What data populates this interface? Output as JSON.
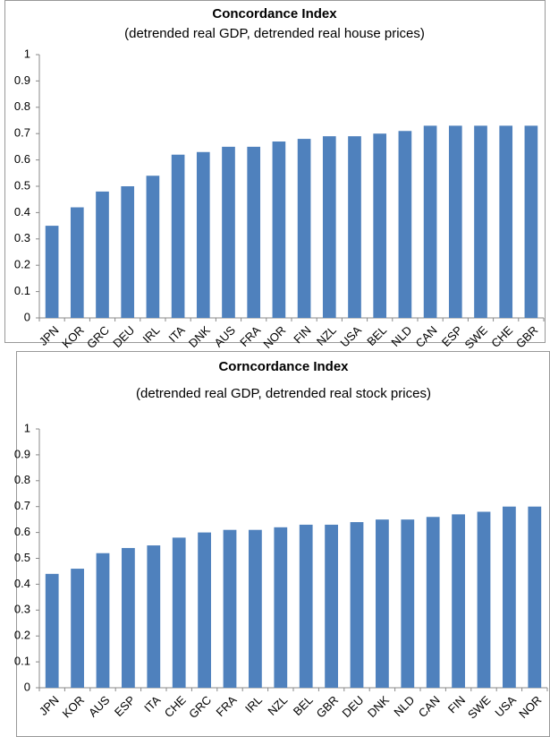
{
  "chart_data": [
    {
      "type": "bar",
      "title": "Concordance Index",
      "subtitle": "(detrended real GDP, detrended real house prices)",
      "categories": [
        "JPN",
        "KOR",
        "GRC",
        "DEU",
        "IRL",
        "ITA",
        "DNK",
        "AUS",
        "FRA",
        "NOR",
        "FIN",
        "NZL",
        "USA",
        "BEL",
        "NLD",
        "CAN",
        "ESP",
        "SWE",
        "CHE",
        "GBR"
      ],
      "values": [
        0.35,
        0.42,
        0.48,
        0.5,
        0.54,
        0.62,
        0.63,
        0.65,
        0.65,
        0.67,
        0.68,
        0.69,
        0.69,
        0.7,
        0.71,
        0.73,
        0.73,
        0.73,
        0.73,
        0.73
      ],
      "color": "#4f81bd",
      "ylim": [
        0,
        1
      ],
      "yticks": [
        0,
        0.1,
        0.2,
        0.3,
        0.4,
        0.5,
        0.6,
        0.7,
        0.8,
        0.9,
        1
      ],
      "grid": false
    },
    {
      "type": "bar",
      "title": "Corncordance Index",
      "subtitle": "(detrended real GDP, detrended real stock prices)",
      "categories": [
        "JPN",
        "KOR",
        "AUS",
        "ESP",
        "ITA",
        "CHE",
        "GRC",
        "FRA",
        "IRL",
        "NZL",
        "BEL",
        "GBR",
        "DEU",
        "DNK",
        "NLD",
        "CAN",
        "FIN",
        "SWE",
        "USA",
        "NOR"
      ],
      "values": [
        0.44,
        0.46,
        0.52,
        0.54,
        0.55,
        0.58,
        0.6,
        0.61,
        0.61,
        0.62,
        0.63,
        0.63,
        0.64,
        0.65,
        0.65,
        0.66,
        0.67,
        0.68,
        0.7,
        0.7
      ],
      "color": "#4f81bd",
      "ylim": [
        0,
        1
      ],
      "yticks": [
        0,
        0.1,
        0.2,
        0.3,
        0.4,
        0.5,
        0.6,
        0.7,
        0.8,
        0.9,
        1
      ],
      "grid": false
    }
  ]
}
